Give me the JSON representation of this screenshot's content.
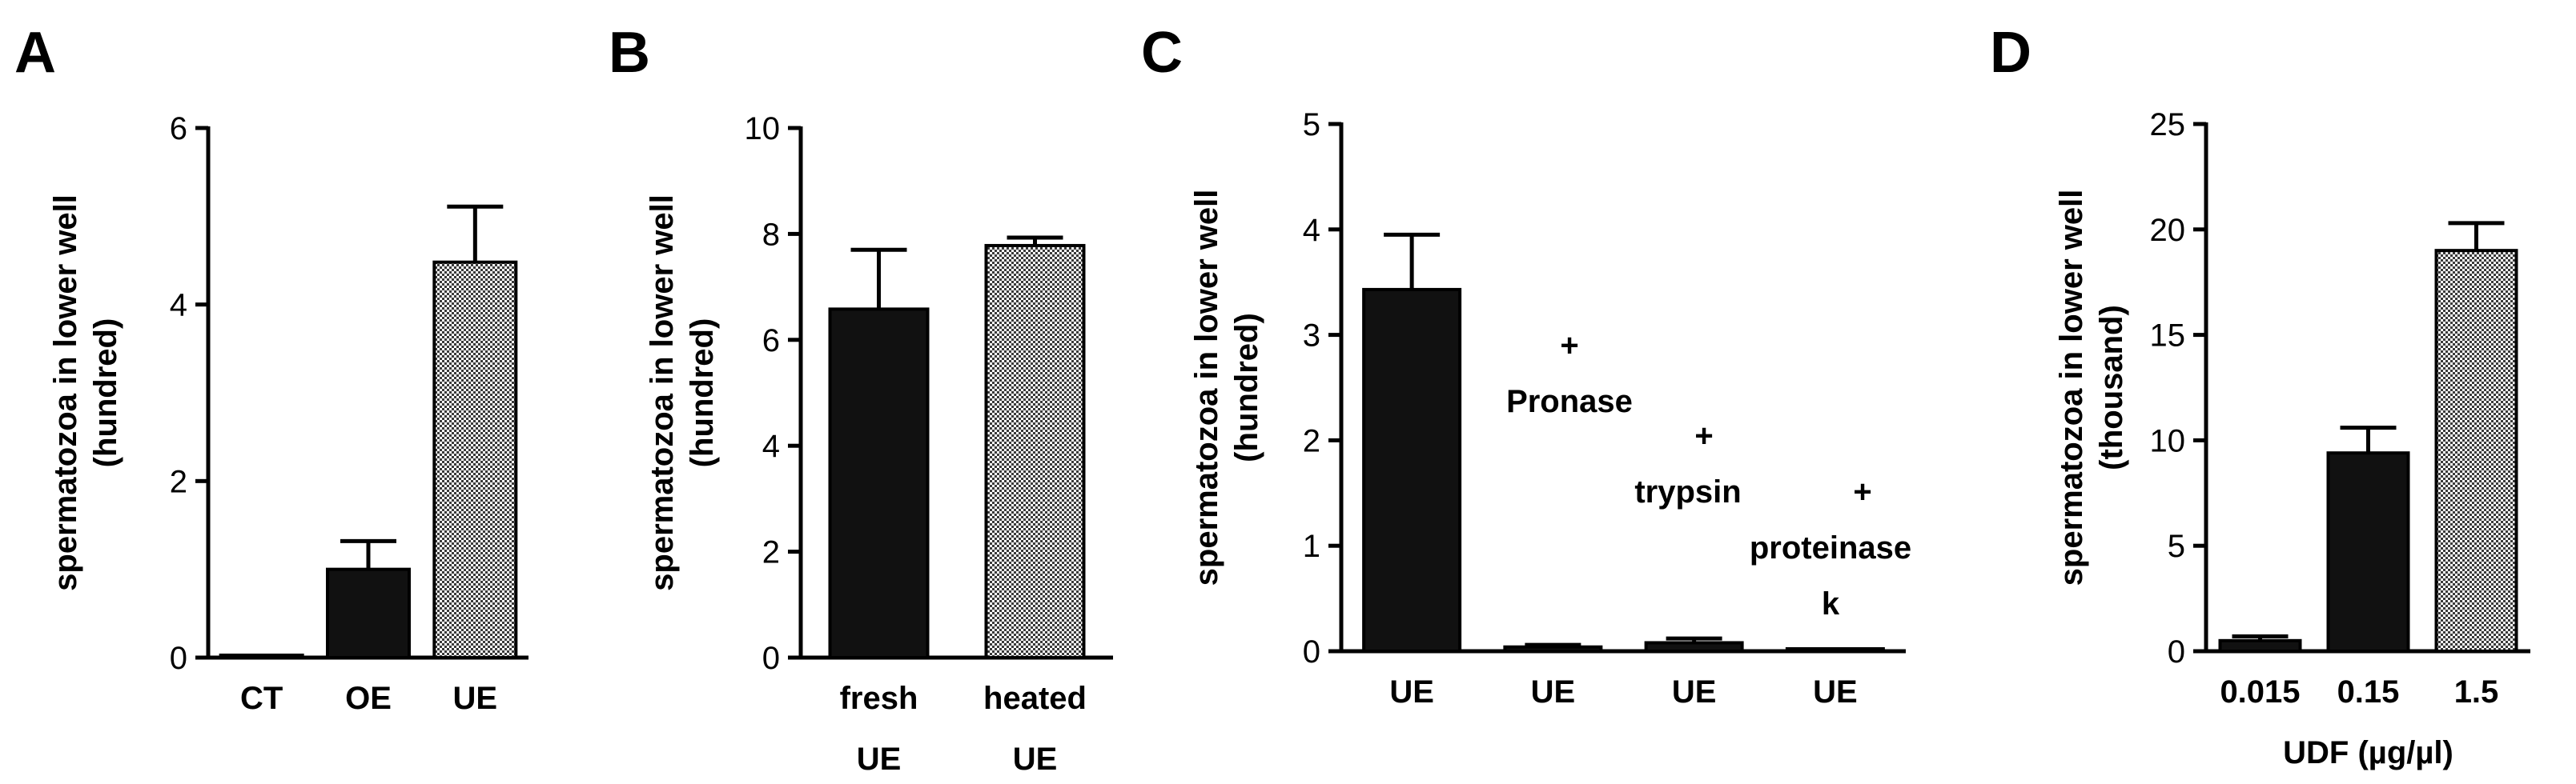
{
  "colors": {
    "solid_fill": "#111111",
    "hatched_fill": "checkered-gray",
    "axis": "#000000"
  },
  "panels": [
    {
      "letter": "A"
    },
    {
      "letter": "B"
    },
    {
      "letter": "C",
      "annotations": [
        "+",
        "Pronase",
        "+",
        "trypsin",
        "+",
        "proteinase",
        "k"
      ]
    },
    {
      "letter": "D"
    }
  ],
  "chart_data": [
    {
      "panel": "A",
      "type": "bar",
      "categories": [
        "CT",
        "OE",
        "UE"
      ],
      "values": [
        0.02,
        1.0,
        4.48
      ],
      "error_plus": [
        0.0,
        0.32,
        0.63
      ],
      "fills": [
        "solid",
        "solid",
        "hatched"
      ],
      "ylabel": "spermatozoa in lower well",
      "ylabel2": "(hundred)",
      "xlabel": "",
      "ylim": [
        0,
        6
      ],
      "yticks": [
        "0",
        "2",
        "4",
        "6"
      ],
      "grid": false
    },
    {
      "panel": "B",
      "type": "bar",
      "categories": [
        [
          "fresh",
          "UE"
        ],
        [
          "heated",
          "UE"
        ]
      ],
      "values": [
        6.58,
        7.78
      ],
      "error_plus": [
        1.12,
        0.15
      ],
      "fills": [
        "solid",
        "hatched"
      ],
      "ylabel": "spermatozoa in lower well",
      "ylabel2": "(hundred)",
      "xlabel": "",
      "ylim": [
        0,
        10
      ],
      "yticks": [
        "0",
        "2",
        "4",
        "6",
        "8",
        "10"
      ],
      "grid": false
    },
    {
      "panel": "C",
      "type": "bar",
      "categories": [
        "UE",
        "UE",
        "UE",
        "UE"
      ],
      "values": [
        3.43,
        0.04,
        0.08,
        0.0
      ],
      "error_plus": [
        0.52,
        0.02,
        0.04,
        0.0
      ],
      "fills": [
        "solid",
        "solid",
        "solid",
        "solid"
      ],
      "ylabel": "spermatozoa in lower well",
      "ylabel2": "(hundred)",
      "xlabel": "",
      "ylim": [
        0,
        5
      ],
      "yticks": [
        "0",
        "1",
        "2",
        "3",
        "4",
        "5"
      ],
      "grid": false
    },
    {
      "panel": "D",
      "type": "bar",
      "categories": [
        "0.015",
        "0.15",
        "1.5"
      ],
      "values": [
        0.5,
        9.4,
        19.0
      ],
      "error_plus": [
        0.2,
        1.2,
        1.3
      ],
      "fills": [
        "solid",
        "solid",
        "hatched"
      ],
      "ylabel": "spermatozoa in lower well",
      "ylabel2": "(thousand)",
      "xlabel": "UDF (µg/µl)",
      "ylim": [
        0,
        25
      ],
      "yticks": [
        "0",
        "5",
        "10",
        "15",
        "20",
        "25"
      ],
      "grid": false
    }
  ]
}
